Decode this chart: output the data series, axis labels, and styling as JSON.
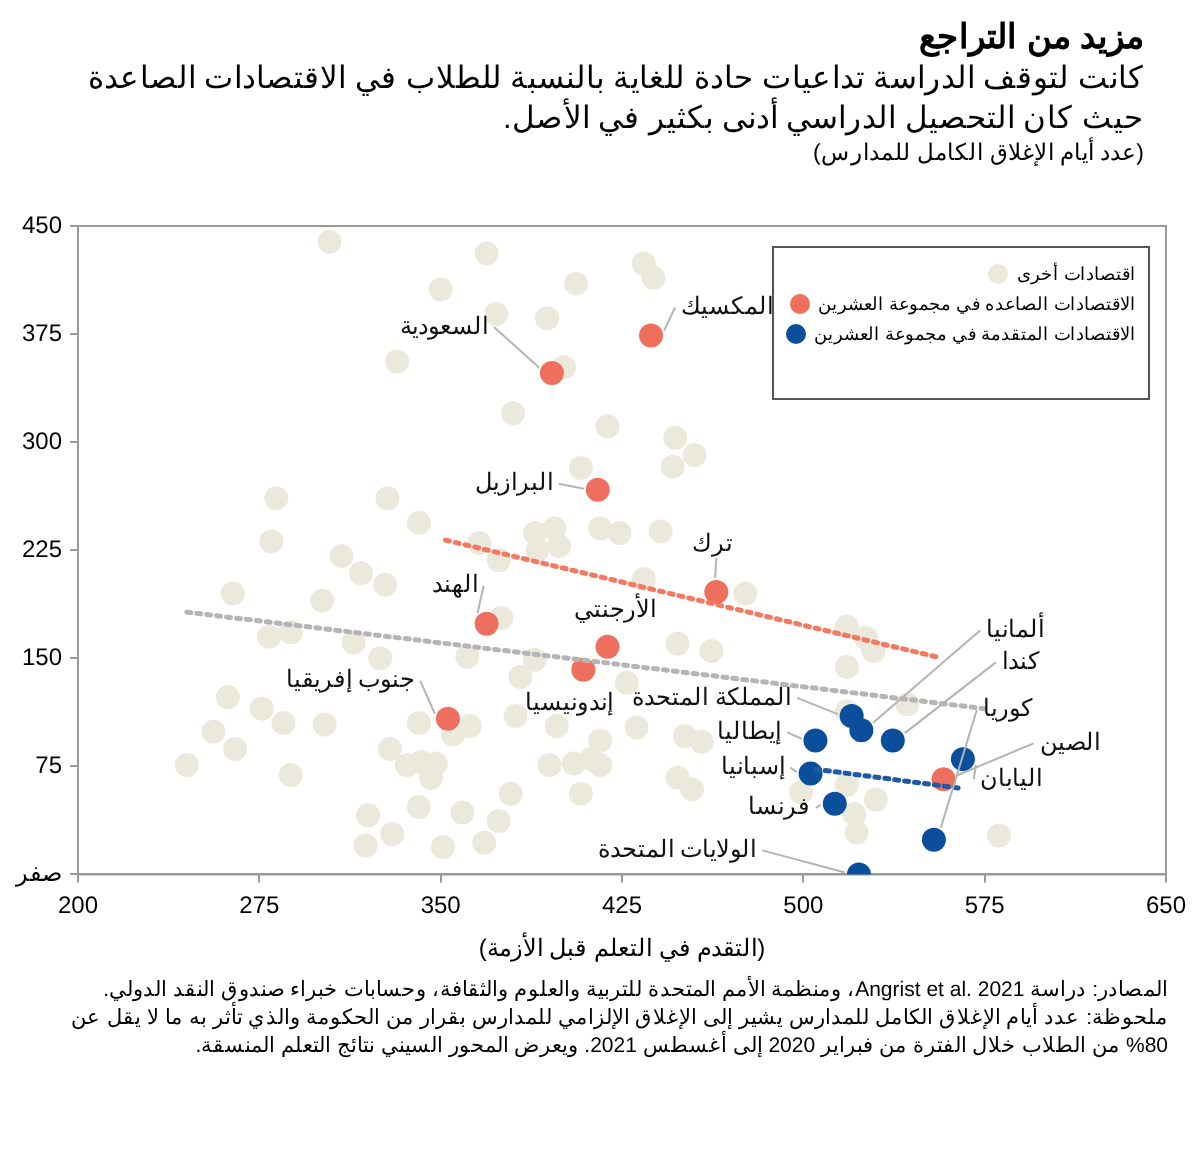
{
  "chart_data": {
    "type": "scatter",
    "title": "مزيد من التراجع",
    "subtitle": "كانت لتوقف الدراسة تداعيات حادة للغاية بالنسبة للطلاب في الاقتصادات الصاعدة حيث كان التحصيل الدراسي أدنى بكثير في الأصل.",
    "ylabel": "(عدد أيام الإغلاق الكامل للمدارس)",
    "xlabel": "(التقدم في التعلم قبل الأزمة)",
    "xlim": [
      200,
      650
    ],
    "ylim": [
      0,
      450
    ],
    "xticks": [
      200,
      275,
      350,
      425,
      500,
      575,
      650
    ],
    "yticks": [
      {
        "value": 0,
        "label": "صفر"
      },
      75,
      150,
      225,
      300,
      375,
      450
    ],
    "legend": "top right",
    "marker": "circle",
    "series": [
      {
        "name": "اقتصادات أخرى",
        "color": "#ebe8dc",
        "x": [
          304,
          369,
          434,
          438,
          350,
          406,
          373,
          394,
          332,
          401,
          380,
          419,
          447,
          455,
          408,
          446,
          282,
          328,
          280,
          341,
          366,
          389,
          397,
          399,
          416,
          424,
          441,
          309,
          317,
          327,
          374,
          390,
          434,
          476,
          264,
          301,
          375,
          279,
          288,
          314,
          325,
          361,
          383,
          389,
          448,
          462,
          518,
          526,
          529,
          518,
          262,
          276,
          285,
          302,
          341,
          362,
          355,
          381,
          256,
          265,
          245,
          288,
          329,
          336,
          342,
          348,
          346,
          395,
          405,
          412,
          416,
          398,
          416,
          431,
          451,
          458,
          427,
          448,
          454,
          408,
          379,
          359,
          341,
          320,
          374,
          330,
          319,
          351,
          368,
          499,
          518,
          530,
          521,
          522,
          581,
          518,
          543
        ],
        "values": [
          439,
          431,
          424,
          414,
          406,
          410,
          389,
          386,
          356,
          352,
          320,
          311,
          303,
          291,
          282,
          283,
          261,
          261,
          231,
          244,
          230,
          237,
          240,
          228,
          240,
          237,
          238,
          221,
          209,
          201,
          218,
          225,
          205,
          195,
          195,
          190,
          178,
          165,
          168,
          161,
          150,
          151,
          137,
          149,
          160,
          155,
          172,
          164,
          155,
          144,
          123,
          115,
          105,
          104,
          105,
          103,
          97,
          110,
          99,
          87,
          76,
          69,
          87,
          76,
          78,
          77,
          67,
          76,
          77,
          80,
          76,
          103,
          93,
          102,
          96,
          92,
          133,
          67,
          59,
          56,
          56,
          43,
          47,
          41,
          37,
          28,
          20,
          19,
          22,
          57,
          62,
          52,
          42,
          29,
          27,
          113,
          118
        ]
      },
      {
        "name": "الاقتصادات الصاعده في مجموعة العشرين",
        "color": "#ef6f5e",
        "x": [
          396,
          437,
          415,
          464,
          369,
          419,
          409,
          353,
          558
        ],
        "values": [
          348,
          374,
          267,
          196,
          174,
          158,
          142,
          108,
          66
        ]
      },
      {
        "name": "الاقتصادات المتقدمة في مجموعة العشرين",
        "color": "#0b4f9c",
        "x": [
          520,
          524,
          537,
          505,
          566,
          503,
          513,
          554,
          523
        ],
        "values": [
          110,
          100,
          93,
          93,
          80,
          70,
          49,
          24,
          0
        ]
      },
      {
        "type": "line",
        "color": "#f27a63",
        "line_style": "dotted",
        "marker": "none",
        "x": [
          352,
          555
        ],
        "values": [
          232,
          151
        ]
      },
      {
        "type": "line",
        "color": "#b5b5b5",
        "line_style": "dotted",
        "marker": "none",
        "x": [
          245,
          575
        ],
        "values": [
          182,
          115
        ]
      },
      {
        "type": "line",
        "color": "#1f5aa6",
        "line_style": "dotted",
        "marker": "none",
        "x": [
          505,
          564
        ],
        "values": [
          73,
          60
        ]
      }
    ],
    "annotations": [
      {
        "text": "المكسيك",
        "x": 437,
        "y": 374
      },
      {
        "text": "السعودية",
        "x": 396,
        "y": 348
      },
      {
        "text": "البرازيل",
        "x": 415,
        "y": 267
      },
      {
        "text": "ترك",
        "x": 464,
        "y": 196
      },
      {
        "text": "الهند",
        "x": 369,
        "y": 174
      },
      {
        "text": "الأرجنتي",
        "x": 419,
        "y": 158
      },
      {
        "text": "إندونيسيا",
        "x": 409,
        "y": 142
      },
      {
        "text": "جنوب إفريقيا",
        "x": 353,
        "y": 108
      },
      {
        "text": "المملكة المتحدة",
        "x": 520,
        "y": 110
      },
      {
        "text": "ألمانيا",
        "x": 524,
        "y": 100
      },
      {
        "text": "كندا",
        "x": 537,
        "y": 93
      },
      {
        "text": "كوريا",
        "x": 554,
        "y": 24
      },
      {
        "text": "الصين",
        "x": 558,
        "y": 66
      },
      {
        "text": "إيطاليا",
        "x": 505,
        "y": 93
      },
      {
        "text": "اليابان",
        "x": 566,
        "y": 80
      },
      {
        "text": "إسبانيا",
        "x": 503,
        "y": 70
      },
      {
        "text": "فرنسا",
        "x": 513,
        "y": 49
      },
      {
        "text": "الولايات المتحدة",
        "x": 523,
        "y": 0
      },
      "المصادر: دراسة Angrist et al. 2021، ومنظمة الأمم المتحدة للتربية والعلوم والثقافة، وحسابات خبراء صندوق النقد الدولي.",
      "ملحوظة: عدد أيام الإغلاق الكامل للمدارس يشير إلى الإغلاق الإلزامي للمدارس بقرار من الحكومة والذي تأثر به ما لا يقل عن 80% من الطلاب خلال الفترة من فبراير 2020 إلى أغسطس 2021. ويعرض المحور السيني نتائج التعلم المنسقة."
    ]
  }
}
